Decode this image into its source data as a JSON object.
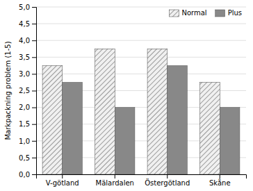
{
  "chart_data": {
    "type": "bar",
    "categories": [
      "V-götland",
      "Mälardalen",
      "Östergötland",
      "Skåne"
    ],
    "series": [
      {
        "name": "Normal",
        "color": "#f0f0f0",
        "values": [
          3.25,
          3.75,
          3.75,
          2.75
        ]
      },
      {
        "name": "Plus",
        "color": "#888888",
        "values": [
          2.75,
          2.0,
          3.25,
          2.0
        ]
      }
    ],
    "ylabel": "Markpackning problem (1-5)",
    "ylim": [
      0,
      5.0
    ],
    "yticks": [
      {
        "value": 0.0,
        "label": "0,0"
      },
      {
        "value": 0.5,
        "label": "0,5"
      },
      {
        "value": 1.0,
        "label": "1,0"
      },
      {
        "value": 1.5,
        "label": "1,5"
      },
      {
        "value": 2.0,
        "label": "2,0"
      },
      {
        "value": 2.5,
        "label": "2,5"
      },
      {
        "value": 3.0,
        "label": "3,0"
      },
      {
        "value": 3.5,
        "label": "3,5"
      },
      {
        "value": 4.0,
        "label": "4,0"
      },
      {
        "value": 4.5,
        "label": "4,5"
      },
      {
        "value": 5.0,
        "label": "5,0"
      }
    ],
    "grid": true,
    "legend": "top-right"
  }
}
